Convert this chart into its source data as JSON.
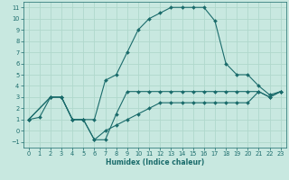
{
  "xlabel": "Humidex (Indice chaleur)",
  "bg_color": "#c8e8e0",
  "grid_color": "#b0d8cc",
  "line_color": "#1a6b6b",
  "xlim": [
    -0.5,
    23.5
  ],
  "ylim": [
    -1.5,
    11.5
  ],
  "xticks": [
    0,
    1,
    2,
    3,
    4,
    5,
    6,
    7,
    8,
    9,
    10,
    11,
    12,
    13,
    14,
    15,
    16,
    17,
    18,
    19,
    20,
    21,
    22,
    23
  ],
  "yticks": [
    -1,
    0,
    1,
    2,
    3,
    4,
    5,
    6,
    7,
    8,
    9,
    10,
    11
  ],
  "line1_x": [
    0,
    1,
    2,
    3,
    4,
    5,
    6,
    7,
    8,
    9,
    10,
    11,
    12,
    13,
    14,
    15,
    16,
    17,
    18,
    19,
    20,
    21,
    22,
    23
  ],
  "line1_y": [
    1,
    1.2,
    3,
    3,
    1,
    1,
    1,
    4.5,
    5,
    7,
    9,
    10,
    10.5,
    11,
    11,
    11,
    11,
    9.8,
    6,
    5,
    5,
    4,
    3.2,
    3.5
  ],
  "line2_x": [
    0,
    2,
    3,
    4,
    5,
    6,
    7,
    8,
    9,
    10,
    11,
    12,
    13,
    14,
    15,
    16,
    17,
    18,
    19,
    20,
    21,
    22,
    23
  ],
  "line2_y": [
    1,
    3,
    3,
    1,
    1,
    -0.8,
    -0.8,
    1.5,
    3.5,
    3.5,
    3.5,
    3.5,
    3.5,
    3.5,
    3.5,
    3.5,
    3.5,
    3.5,
    3.5,
    3.5,
    3.5,
    3,
    3.5
  ],
  "line3_x": [
    0,
    2,
    3,
    4,
    5,
    6,
    7,
    8,
    9,
    10,
    11,
    12,
    13,
    14,
    15,
    16,
    17,
    18,
    19,
    20,
    21,
    22,
    23
  ],
  "line3_y": [
    1,
    3,
    3,
    1,
    1,
    -0.8,
    0,
    0.5,
    1,
    1.5,
    2,
    2.5,
    2.5,
    2.5,
    2.5,
    2.5,
    2.5,
    2.5,
    2.5,
    2.5,
    3.5,
    3,
    3.5
  ],
  "marker_size": 2.0,
  "line_width": 0.8,
  "tick_fontsize": 4.8,
  "label_fontsize": 5.5
}
